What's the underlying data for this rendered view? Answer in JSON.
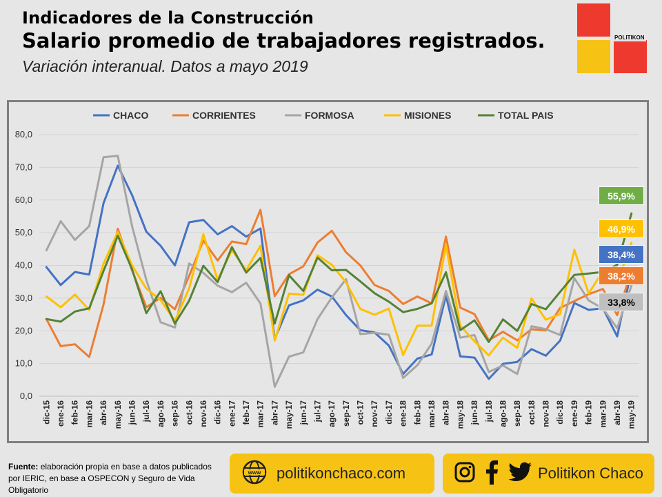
{
  "header": {
    "title_line1": "Indicadores de la Construcción",
    "title_line2": "Salario promedio de trabajadores registrados.",
    "subtitle": "Variación interanual. Datos a mayo 2019"
  },
  "logo": {
    "text": "POLITIKON",
    "colors": [
      "#ee3a2e",
      "#f6c315",
      "#ee3a2e",
      "#f6c315"
    ]
  },
  "chart_data": {
    "type": "line",
    "categories": [
      "dic-15",
      "ene-16",
      "feb-16",
      "mar-16",
      "abr-16",
      "may-16",
      "jun-16",
      "jul-16",
      "ago-16",
      "sep-16",
      "oct-16",
      "nov-16",
      "dic-16",
      "ene-17",
      "feb-17",
      "mar-17",
      "abr-17",
      "may-17",
      "jun-17",
      "jul-17",
      "ago-17",
      "sep-17",
      "oct-17",
      "nov-17",
      "dic-17",
      "ene-18",
      "feb-18",
      "mar-18",
      "abr-18",
      "may-18",
      "jun-18",
      "jul-18",
      "ago-18",
      "sep-18",
      "oct-18",
      "nov-18",
      "dic-18",
      "ene-19",
      "feb-19",
      "mar-19",
      "abr-19",
      "may-19"
    ],
    "ylim": [
      0,
      80
    ],
    "yticks": [
      "0,0",
      "10,0",
      "20,0",
      "30,0",
      "40,0",
      "50,0",
      "60,0",
      "70,0",
      "80,0"
    ],
    "grid": true,
    "legend_position": "top",
    "series": [
      {
        "name": "CHACO",
        "color": "#4472c4",
        "values": [
          39.5,
          34,
          38,
          37.2,
          59,
          70.5,
          61.5,
          50.3,
          46,
          40,
          53.2,
          53.9,
          49.5,
          52,
          48.8,
          51.3,
          17.5,
          27.8,
          29.3,
          32.6,
          30.5,
          24.8,
          20.2,
          19.5,
          15.5,
          6.8,
          11.5,
          12.8,
          30.8,
          12.2,
          11.8,
          5.3,
          9.9,
          10.5,
          14.4,
          12.4,
          17,
          28.5,
          26.4,
          26.9,
          18.3,
          38.4
        ]
      },
      {
        "name": "CORRIENTES",
        "color": "#ed7d31",
        "values": [
          23.6,
          15.3,
          15.9,
          12,
          28,
          51.2,
          38.5,
          27.2,
          30.1,
          26.6,
          36.8,
          47.6,
          41.5,
          47.3,
          46.5,
          57,
          30.6,
          37.3,
          39.7,
          47,
          50.6,
          44,
          40,
          34,
          32.2,
          28.2,
          30.5,
          28.4,
          48.8,
          27.1,
          25.1,
          17.1,
          19.7,
          17.1,
          20.5,
          20.1,
          27,
          29.1,
          31.2,
          32.8,
          24.8,
          38.2
        ]
      },
      {
        "name": "FORMOSA",
        "color": "#a5a5a5",
        "values": [
          44.6,
          53.5,
          47.8,
          52,
          73.1,
          73.5,
          52,
          35.5,
          22.6,
          21,
          40.6,
          37.7,
          33.8,
          31.8,
          34.7,
          28.4,
          2.9,
          12.1,
          13.4,
          23.6,
          30.2,
          35.8,
          19,
          19.4,
          18.8,
          5.6,
          9.5,
          16.1,
          32.2,
          17.9,
          18.7,
          7.4,
          9.4,
          6.8,
          21.4,
          20.5,
          18.7,
          36.1,
          29.3,
          26.8,
          20.8,
          33.8
        ]
      },
      {
        "name": "MISIONES",
        "color": "#ffc000",
        "values": [
          30.5,
          27.2,
          31.1,
          26.4,
          40.5,
          50.2,
          40,
          32.9,
          29.4,
          23,
          33,
          49.5,
          35.6,
          44.7,
          38.5,
          46,
          17,
          31.4,
          31,
          43.1,
          40.2,
          34.8,
          26.7,
          24.9,
          26.8,
          12.6,
          21.6,
          21.6,
          46.3,
          21.5,
          16.8,
          12.5,
          17.9,
          14.8,
          29.9,
          23.4,
          25.1,
          44.8,
          31.4,
          38.2,
          34.8,
          46.9
        ]
      },
      {
        "name": "TOTAL PAIS",
        "color": "#548235",
        "values": [
          23.6,
          22.8,
          25.9,
          26.9,
          38.3,
          49.1,
          38.8,
          25.4,
          32.1,
          22.2,
          29.2,
          39.9,
          34.9,
          45.6,
          37.8,
          42.3,
          22.2,
          37,
          32.2,
          42.4,
          38.5,
          38.6,
          35.1,
          31.5,
          28.9,
          25.7,
          26.7,
          28.4,
          37.9,
          20.2,
          23.2,
          16.6,
          23.5,
          20,
          28.2,
          26.6,
          31.9,
          37.1,
          37.5,
          38,
          40.2,
          55.9
        ]
      }
    ],
    "end_labels": [
      {
        "text": "55,9%",
        "color": "#70ad47",
        "text_color": "#ffffff"
      },
      {
        "text": "46,9%",
        "color": "#ffc000",
        "text_color": "#ffffff"
      },
      {
        "text": "38,4%",
        "color": "#4472c4",
        "text_color": "#ffffff"
      },
      {
        "text": "38,2%",
        "color": "#ed7d31",
        "text_color": "#ffffff"
      },
      {
        "text": "33,8%",
        "color": "#bfbfbf",
        "text_color": "#000000"
      }
    ]
  },
  "footer": {
    "source_label": "Fuente:",
    "source_text": "elaboración propia en base a datos publicados por IERIC, en base a OSPECON y Seguro de Vida Obligatorio",
    "website_icon": "www-globe-icon",
    "website": "politikonchaco.com",
    "social_icons": [
      "instagram-icon",
      "facebook-icon",
      "twitter-icon"
    ],
    "social_name": "Politikon Chaco",
    "pill_color": "#f6c315"
  }
}
